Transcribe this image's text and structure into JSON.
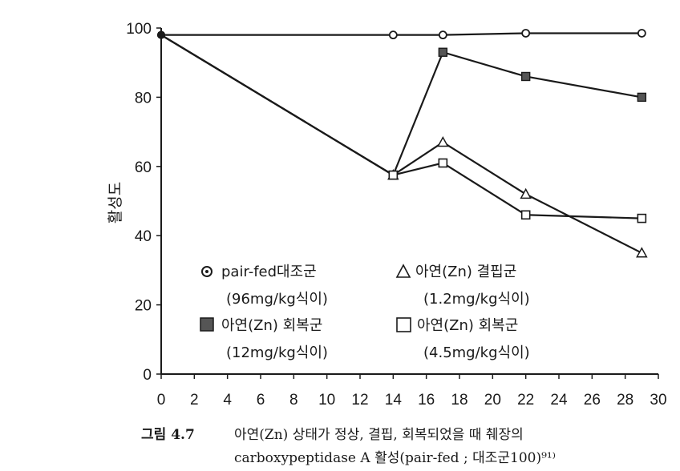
{
  "chart_data": {
    "type": "line",
    "ylabel": "활성도",
    "xlim": [
      0,
      30
    ],
    "ylim": [
      0,
      100
    ],
    "x_ticks": [
      "0",
      "2",
      "4",
      "6",
      "8",
      "10",
      "12",
      "14",
      "16",
      "18",
      "20",
      "22",
      "24",
      "26",
      "28",
      "30"
    ],
    "y_ticks": [
      "0",
      "20",
      "40",
      "60",
      "80",
      "100"
    ],
    "series": [
      {
        "key": "pairfed",
        "x": [
          0,
          14,
          17,
          22,
          29
        ],
        "y": [
          98,
          98,
          98,
          98.5,
          98.5
        ],
        "marker": "circle-dot",
        "color": "#1a1a1a"
      },
      {
        "key": "recovery12",
        "x": [
          0,
          14,
          17,
          22,
          29
        ],
        "y": [
          98,
          57.5,
          93,
          86,
          80
        ],
        "marker": "filled-square",
        "color": "#1a1a1a"
      },
      {
        "key": "deficient",
        "x": [
          0,
          14,
          17,
          22,
          29
        ],
        "y": [
          98,
          57.5,
          67,
          52,
          35
        ],
        "marker": "triangle",
        "color": "#1a1a1a"
      },
      {
        "key": "recovery45",
        "x": [
          0,
          14,
          17,
          22,
          29
        ],
        "y": [
          98,
          57.5,
          61,
          46,
          45
        ],
        "marker": "open-square",
        "color": "#1a1a1a"
      }
    ],
    "legend": [
      {
        "key": "pairfed",
        "label": "pair-fed대조군",
        "sub": "(96mg/kg식이)"
      },
      {
        "key": "deficient",
        "label": "아연(Zn) 결핍군",
        "sub": "(1.2mg/kg식이)"
      },
      {
        "key": "recovery12",
        "label": "아연(Zn) 회복군",
        "sub": "(12mg/kg식이)"
      },
      {
        "key": "recovery45",
        "label": "아연(Zn) 회복군",
        "sub": "(4.5mg/kg식이)"
      }
    ],
    "caption": {
      "label": "그림 4.7",
      "line1": "아연(Zn) 상태가 정상, 결핍, 회복되었을 때 췌장의",
      "line2": "carboxypeptidase A 활성(pair-fed ; 대조군100)⁹¹⁾"
    }
  }
}
